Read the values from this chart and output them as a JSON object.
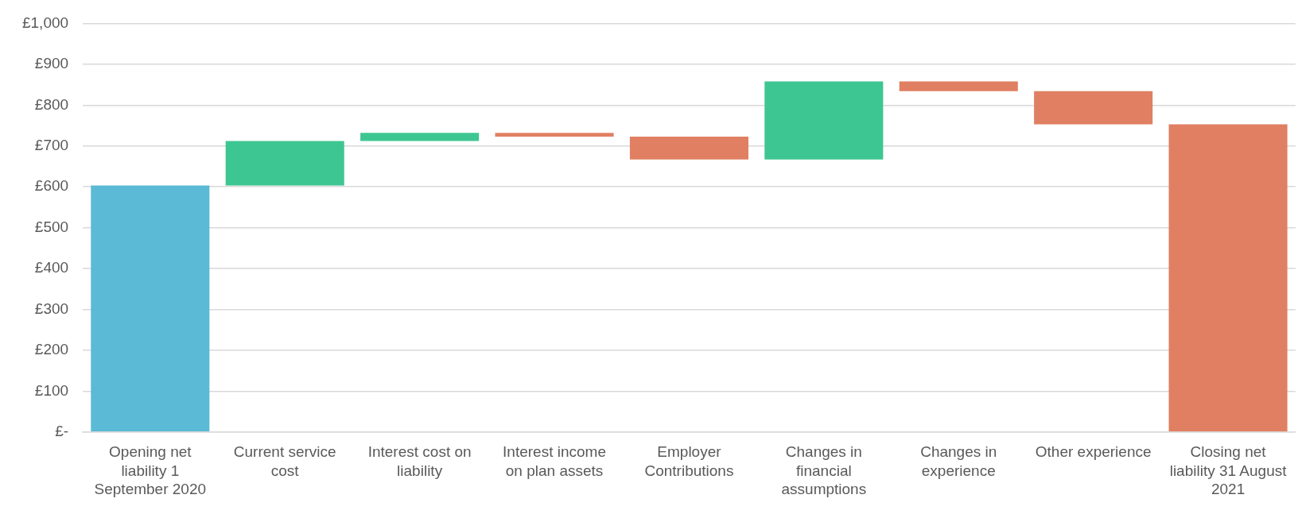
{
  "chart_data": {
    "type": "bar",
    "categories": [
      "Opening net liability 1 September 2020",
      "Current service cost",
      "Interest cost on liability",
      "Interest income on plan assets",
      "Employer Contributions",
      "Changes in financial assumptions",
      "Changes in experience",
      "Other experience",
      "Closing net liability 31 August 2021"
    ],
    "base": [
      0,
      603,
      712,
      732,
      723,
      667,
      858,
      834,
      0
    ],
    "values": [
      603,
      109,
      20,
      -9,
      -56,
      191,
      -24,
      -81,
      753
    ],
    "colors": [
      "#5bbad5",
      "#3ec692",
      "#3ec692",
      "#e07f62",
      "#e07f62",
      "#3ec692",
      "#e07f62",
      "#e07f62",
      "#e07f62"
    ],
    "ylim": [
      0,
      1000
    ],
    "yticks": [
      {
        "value": 0,
        "label": "£-"
      },
      {
        "value": 100,
        "label": "£100"
      },
      {
        "value": 200,
        "label": "£200"
      },
      {
        "value": 300,
        "label": "£300"
      },
      {
        "value": 400,
        "label": "£400"
      },
      {
        "value": 500,
        "label": "£500"
      },
      {
        "value": 600,
        "label": "£600"
      },
      {
        "value": 700,
        "label": "£700"
      },
      {
        "value": 800,
        "label": "£800"
      },
      {
        "value": 900,
        "label": "£900"
      },
      {
        "value": 1000,
        "label": "£1,000"
      }
    ],
    "grid": "y",
    "legend": false
  }
}
